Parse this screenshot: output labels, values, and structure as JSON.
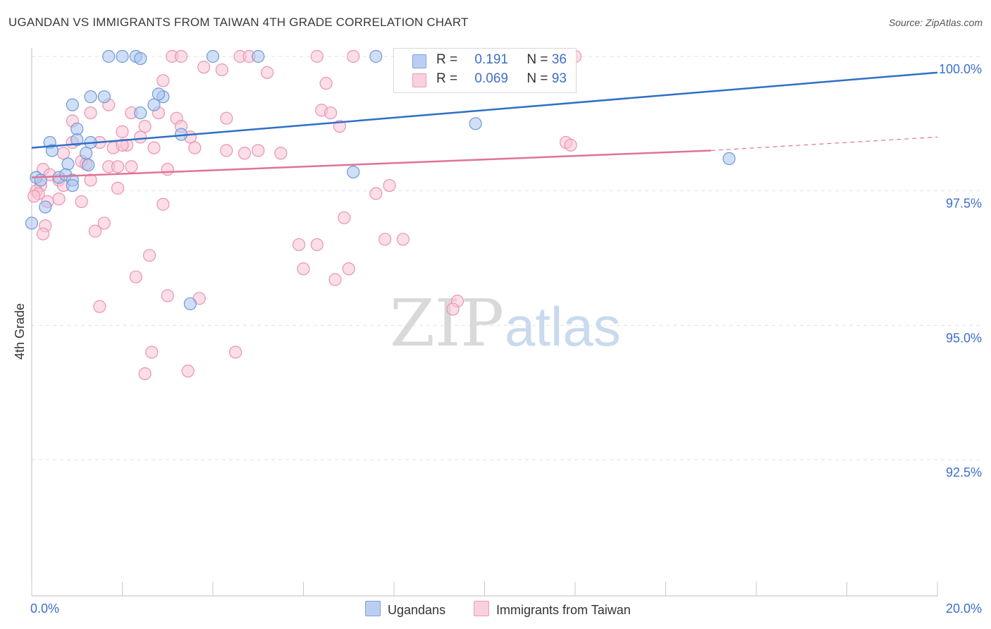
{
  "title": "UGANDAN VS IMMIGRANTS FROM TAIWAN 4TH GRADE CORRELATION CHART",
  "source": "Source: ZipAtlas.com",
  "watermark": {
    "zip": "ZIP",
    "atlas": "atlas"
  },
  "legend": {
    "rows": [
      {
        "r_label": "R =",
        "r_value": "0.191",
        "n_label": "N =",
        "n_value": "36"
      },
      {
        "r_label": "R =",
        "r_value": "0.069",
        "n_label": "N =",
        "n_value": "93"
      }
    ]
  },
  "bottom_legend": [
    "Ugandans",
    "Immigrants from Taiwan"
  ],
  "colors": {
    "ugandans_fill": "#a9c4ee",
    "ugandans_stroke": "#6f99d8",
    "ugandans_line": "#2f6fc6",
    "taiwan_fill": "#f7c3d3",
    "taiwan_stroke": "#eb93b0",
    "taiwan_line": "#e0729a",
    "tick_text": "#3c6fc9",
    "grid": "#e2e2e2"
  },
  "chart_data": {
    "type": "scatter",
    "xlabel": "",
    "ylabel": "4th Grade",
    "xlim": [
      0.0,
      20.0
    ],
    "ylim": [
      90.2,
      100.2
    ],
    "x_tick_labels": [
      {
        "value": 0.0,
        "label": "0.0%"
      },
      {
        "value": 20.0,
        "label": "20.0%"
      }
    ],
    "y_tick_labels": [
      {
        "value": 100.0,
        "label": "100.0%"
      },
      {
        "value": 97.5,
        "label": "97.5%"
      },
      {
        "value": 95.0,
        "label": "95.0%"
      },
      {
        "value": 92.5,
        "label": "92.5%"
      }
    ],
    "grid": true,
    "series": [
      {
        "name": "Ugandans",
        "trend": {
          "x": [
            0.0,
            20.0
          ],
          "y": [
            98.3,
            99.7
          ]
        },
        "points": [
          [
            1.7,
            100.0
          ],
          [
            2.0,
            100.0
          ],
          [
            2.3,
            100.0
          ],
          [
            2.4,
            99.96
          ],
          [
            4.0,
            100.0
          ],
          [
            5.0,
            100.0
          ],
          [
            7.6,
            100.0
          ],
          [
            0.9,
            99.1
          ],
          [
            1.3,
            99.25
          ],
          [
            1.6,
            99.25
          ],
          [
            2.7,
            99.1
          ],
          [
            2.9,
            99.25
          ],
          [
            2.8,
            99.3
          ],
          [
            2.4,
            98.95
          ],
          [
            3.3,
            98.55
          ],
          [
            1.0,
            98.65
          ],
          [
            1.0,
            98.45
          ],
          [
            0.4,
            98.4
          ],
          [
            1.3,
            98.4
          ],
          [
            0.45,
            98.25
          ],
          [
            1.2,
            98.2
          ],
          [
            0.8,
            98.0
          ],
          [
            1.25,
            97.98
          ],
          [
            0.1,
            97.75
          ],
          [
            0.6,
            97.75
          ],
          [
            0.75,
            97.8
          ],
          [
            0.2,
            97.7
          ],
          [
            0.9,
            97.7
          ],
          [
            0.9,
            97.6
          ],
          [
            0.3,
            97.2
          ],
          [
            0.0,
            96.9
          ],
          [
            7.1,
            97.85
          ],
          [
            9.8,
            98.75
          ],
          [
            15.4,
            98.1
          ],
          [
            3.5,
            95.4
          ]
        ]
      },
      {
        "name": "Immigrants from Taiwan",
        "trend": {
          "x": [
            0.0,
            15.0
          ],
          "y": [
            97.75,
            98.25
          ]
        },
        "trend_dashed": {
          "x": [
            15.0,
            20.0
          ],
          "y": [
            98.25,
            98.5
          ]
        },
        "points": [
          [
            3.1,
            100.0
          ],
          [
            3.3,
            100.0
          ],
          [
            4.6,
            100.0
          ],
          [
            4.8,
            100.0
          ],
          [
            6.3,
            100.0
          ],
          [
            7.1,
            100.0
          ],
          [
            12.0,
            100.0
          ],
          [
            3.8,
            99.8
          ],
          [
            4.2,
            99.75
          ],
          [
            5.2,
            99.7
          ],
          [
            2.9,
            99.55
          ],
          [
            6.5,
            99.5
          ],
          [
            1.7,
            99.1
          ],
          [
            1.3,
            98.95
          ],
          [
            2.2,
            98.95
          ],
          [
            2.8,
            98.95
          ],
          [
            3.2,
            98.85
          ],
          [
            4.3,
            98.85
          ],
          [
            6.4,
            99.0
          ],
          [
            6.6,
            98.95
          ],
          [
            0.9,
            98.8
          ],
          [
            2.5,
            98.7
          ],
          [
            3.3,
            98.7
          ],
          [
            6.8,
            98.7
          ],
          [
            2.0,
            98.6
          ],
          [
            2.4,
            98.5
          ],
          [
            3.5,
            98.5
          ],
          [
            0.9,
            98.4
          ],
          [
            1.5,
            98.4
          ],
          [
            1.8,
            98.3
          ],
          [
            2.1,
            98.35
          ],
          [
            2.0,
            98.35
          ],
          [
            2.7,
            98.3
          ],
          [
            3.6,
            98.3
          ],
          [
            4.3,
            98.25
          ],
          [
            4.7,
            98.2
          ],
          [
            5.0,
            98.25
          ],
          [
            5.5,
            98.2
          ],
          [
            11.8,
            98.4
          ],
          [
            11.9,
            98.35
          ],
          [
            0.7,
            98.2
          ],
          [
            1.1,
            98.05
          ],
          [
            1.2,
            98.0
          ],
          [
            1.7,
            97.95
          ],
          [
            1.9,
            97.95
          ],
          [
            2.2,
            97.95
          ],
          [
            3.0,
            97.9
          ],
          [
            0.25,
            97.9
          ],
          [
            0.4,
            97.8
          ],
          [
            0.6,
            97.7
          ],
          [
            1.3,
            97.7
          ],
          [
            0.2,
            97.6
          ],
          [
            0.7,
            97.6
          ],
          [
            0.1,
            97.5
          ],
          [
            1.9,
            97.55
          ],
          [
            7.9,
            97.6
          ],
          [
            7.6,
            97.45
          ],
          [
            0.6,
            97.35
          ],
          [
            1.1,
            97.3
          ],
          [
            0.35,
            97.3
          ],
          [
            2.9,
            97.25
          ],
          [
            1.6,
            96.9
          ],
          [
            1.4,
            96.75
          ],
          [
            0.3,
            96.85
          ],
          [
            0.25,
            96.7
          ],
          [
            6.9,
            97.0
          ],
          [
            5.9,
            96.5
          ],
          [
            6.3,
            96.5
          ],
          [
            7.8,
            96.6
          ],
          [
            8.2,
            96.6
          ],
          [
            2.6,
            96.3
          ],
          [
            6.0,
            96.05
          ],
          [
            7.0,
            96.05
          ],
          [
            2.3,
            95.9
          ],
          [
            6.7,
            95.85
          ],
          [
            3.0,
            95.55
          ],
          [
            3.7,
            95.5
          ],
          [
            1.5,
            95.35
          ],
          [
            9.4,
            95.45
          ],
          [
            9.3,
            95.3
          ],
          [
            2.65,
            94.5
          ],
          [
            4.5,
            94.5
          ],
          [
            2.5,
            94.1
          ],
          [
            3.45,
            94.15
          ],
          [
            0.15,
            97.45
          ],
          [
            0.05,
            97.4
          ]
        ]
      }
    ]
  }
}
